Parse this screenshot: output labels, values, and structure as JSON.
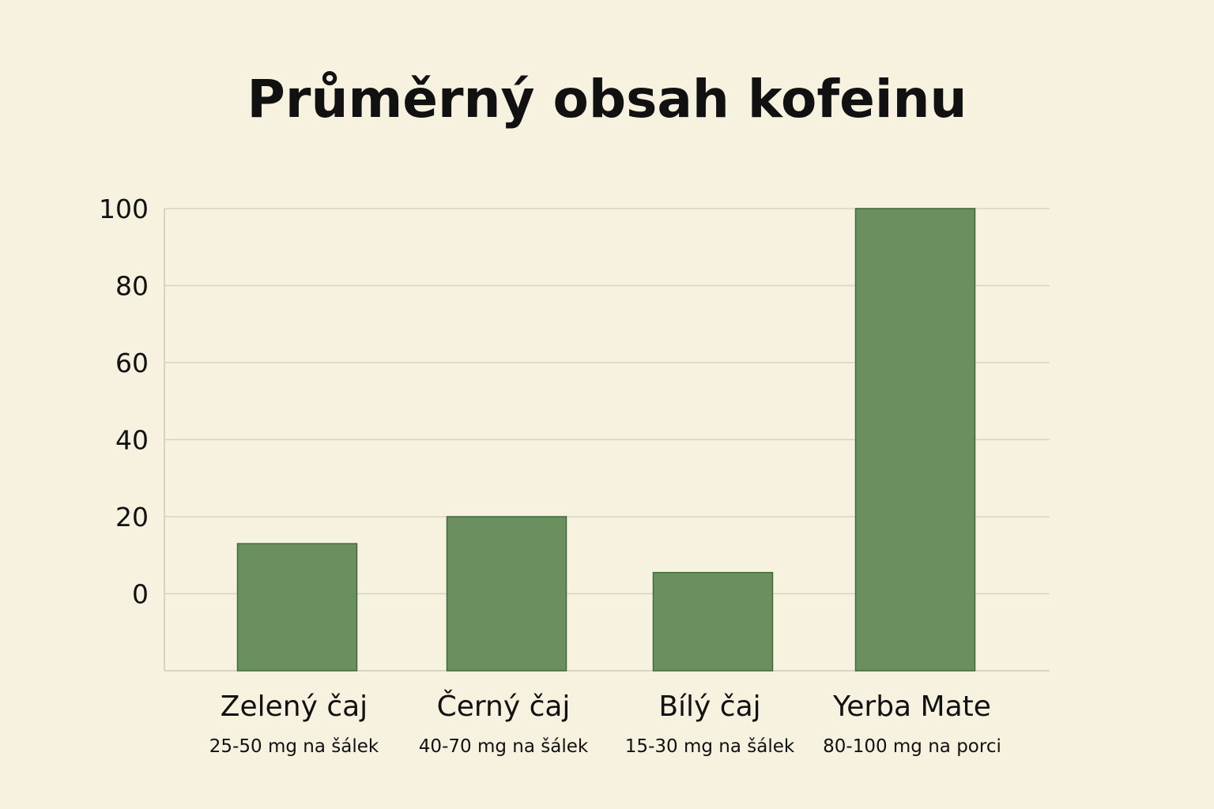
{
  "chart_data": {
    "type": "bar",
    "title": "Průměrný obsah kofeinu",
    "xlabel": "",
    "ylabel": "",
    "ylim": [
      -20,
      100
    ],
    "yticks": [
      0,
      20,
      40,
      60,
      80,
      100
    ],
    "grid": true,
    "categories": [
      "Zelený čaj",
      "Černý čaj",
      "Bílý čaj",
      "Yerba Mate"
    ],
    "sublabels": [
      "25-50 mg na šálek",
      "40-70 mg na šálek",
      "15-30 mg na šálek",
      "80-100 mg na porci"
    ],
    "values": [
      13,
      20,
      5.5,
      100
    ],
    "bar_color": "#6b8f5e",
    "background": "#f7f1e0"
  }
}
